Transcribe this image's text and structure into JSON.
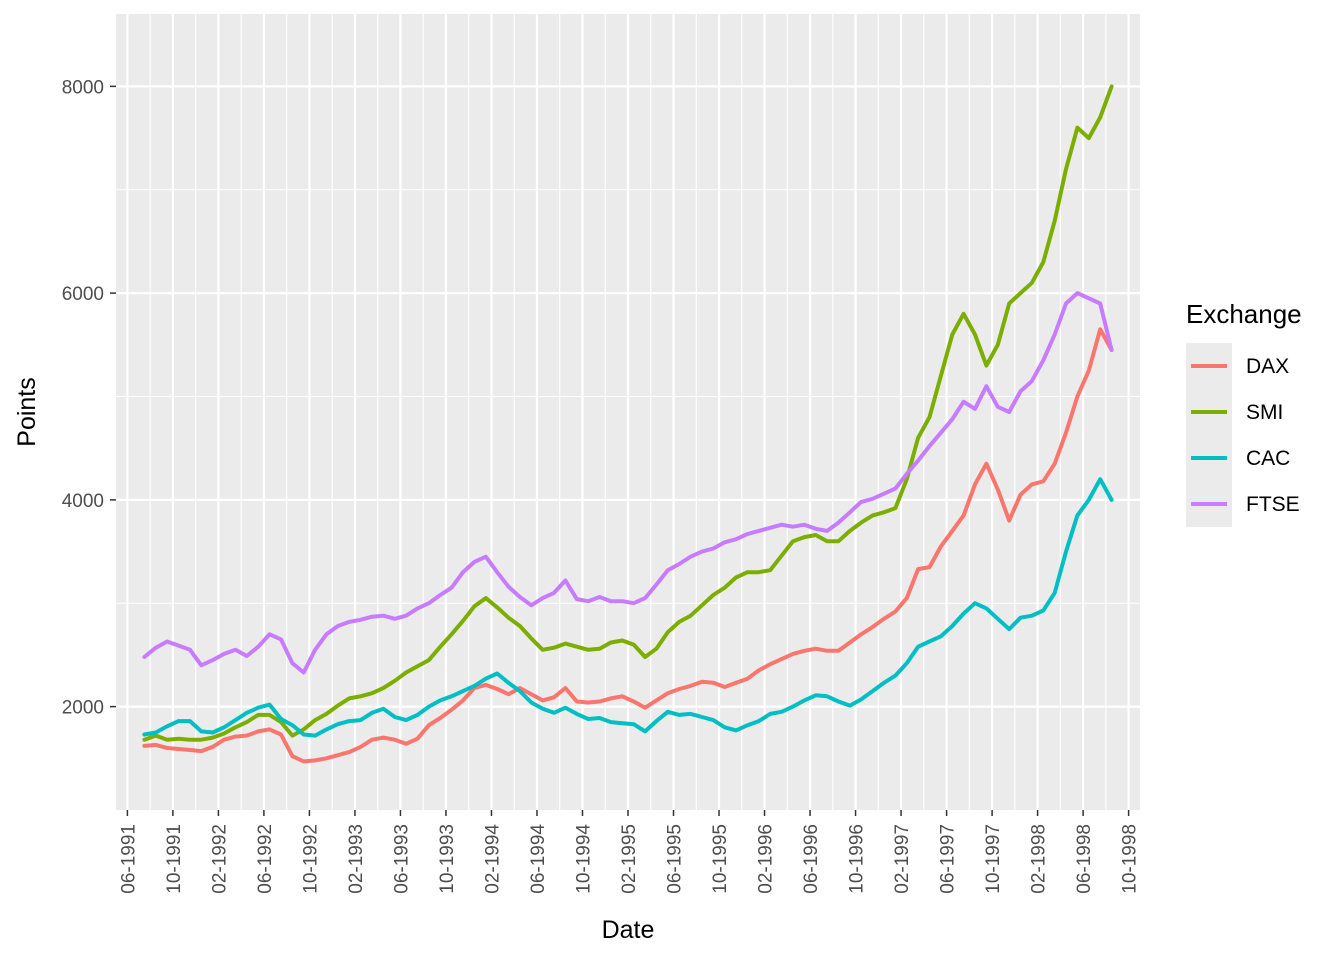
{
  "chart_data": {
    "type": "line",
    "title": "",
    "xlabel": "Date",
    "ylabel": "Points",
    "x_ticks": [
      "06-1991",
      "10-1991",
      "02-1992",
      "06-1992",
      "10-1992",
      "02-1993",
      "06-1993",
      "10-1993",
      "02-1994",
      "06-1994",
      "10-1994",
      "02-1995",
      "06-1995",
      "10-1995",
      "02-1996",
      "06-1996",
      "10-1996",
      "02-1997",
      "06-1997",
      "10-1997",
      "02-1998",
      "06-1998",
      "10-1998"
    ],
    "y_ticks": [
      2000,
      4000,
      6000,
      8000
    ],
    "xlim": [
      "1991-05-01",
      "1998-11-01"
    ],
    "ylim": [
      1000,
      8700
    ],
    "grid": true,
    "legend_title": "Exchange",
    "legend_position": "right",
    "x": [
      "1991-07",
      "1991-08",
      "1991-09",
      "1991-10",
      "1991-11",
      "1991-12",
      "1992-01",
      "1992-02",
      "1992-03",
      "1992-04",
      "1992-05",
      "1992-06",
      "1992-07",
      "1992-08",
      "1992-09",
      "1992-10",
      "1992-11",
      "1992-12",
      "1993-01",
      "1993-02",
      "1993-03",
      "1993-04",
      "1993-05",
      "1993-06",
      "1993-07",
      "1993-08",
      "1993-09",
      "1993-10",
      "1993-11",
      "1993-12",
      "1994-01",
      "1994-02",
      "1994-03",
      "1994-04",
      "1994-05",
      "1994-06",
      "1994-07",
      "1994-08",
      "1994-09",
      "1994-10",
      "1994-11",
      "1994-12",
      "1995-01",
      "1995-02",
      "1995-03",
      "1995-04",
      "1995-05",
      "1995-06",
      "1995-07",
      "1995-08",
      "1995-09",
      "1995-10",
      "1995-11",
      "1995-12",
      "1996-01",
      "1996-02",
      "1996-03",
      "1996-04",
      "1996-05",
      "1996-06",
      "1996-07",
      "1996-08",
      "1996-09",
      "1996-10",
      "1996-11",
      "1996-12",
      "1997-01",
      "1997-02",
      "1997-03",
      "1997-04",
      "1997-05",
      "1997-06",
      "1997-07",
      "1997-08",
      "1997-09",
      "1997-10",
      "1997-11",
      "1997-12",
      "1998-01",
      "1998-02",
      "1998-03",
      "1998-04",
      "1998-05",
      "1998-06",
      "1998-07",
      "1998-08"
    ],
    "series": [
      {
        "name": "DAX",
        "color": "#F8766D",
        "values": [
          1620,
          1630,
          1600,
          1590,
          1580,
          1570,
          1610,
          1680,
          1710,
          1720,
          1760,
          1780,
          1730,
          1520,
          1470,
          1480,
          1500,
          1530,
          1560,
          1610,
          1680,
          1700,
          1680,
          1640,
          1690,
          1820,
          1890,
          1970,
          2060,
          2180,
          2210,
          2170,
          2120,
          2180,
          2120,
          2060,
          2090,
          2180,
          2050,
          2040,
          2050,
          2080,
          2100,
          2050,
          1990,
          2060,
          2130,
          2170,
          2200,
          2240,
          2230,
          2190,
          2230,
          2270,
          2350,
          2410,
          2460,
          2510,
          2540,
          2560,
          2540,
          2540,
          2620,
          2700,
          2770,
          2850,
          2920,
          3050,
          3330,
          3350,
          3550,
          3700,
          3850,
          4150,
          4350,
          4100,
          3800,
          4050,
          4150,
          4180,
          4350,
          4650,
          5000,
          5250,
          5650,
          5450
        ]
      },
      {
        "name": "SMI",
        "color": "#7CAE00",
        "values": [
          1680,
          1720,
          1680,
          1690,
          1680,
          1680,
          1700,
          1740,
          1800,
          1850,
          1920,
          1920,
          1850,
          1720,
          1780,
          1870,
          1930,
          2010,
          2080,
          2100,
          2130,
          2180,
          2250,
          2330,
          2390,
          2450,
          2580,
          2700,
          2830,
          2970,
          3050,
          2960,
          2860,
          2780,
          2660,
          2550,
          2570,
          2610,
          2580,
          2550,
          2560,
          2620,
          2640,
          2600,
          2480,
          2560,
          2720,
          2820,
          2880,
          2980,
          3080,
          3150,
          3250,
          3300,
          3300,
          3320,
          3460,
          3600,
          3640,
          3660,
          3600,
          3600,
          3700,
          3780,
          3850,
          3880,
          3920,
          4200,
          4600,
          4800,
          5200,
          5600,
          5800,
          5600,
          5300,
          5500,
          5900,
          6000,
          6100,
          6300,
          6700,
          7200,
          7600,
          7500,
          7700,
          8000
        ]
      },
      {
        "name": "CAC",
        "color": "#00BFC4",
        "values": [
          1730,
          1750,
          1810,
          1860,
          1860,
          1760,
          1750,
          1800,
          1870,
          1940,
          1990,
          2020,
          1880,
          1820,
          1730,
          1720,
          1780,
          1830,
          1860,
          1870,
          1940,
          1980,
          1900,
          1870,
          1920,
          2000,
          2060,
          2100,
          2150,
          2200,
          2270,
          2320,
          2230,
          2150,
          2040,
          1980,
          1940,
          1990,
          1930,
          1880,
          1890,
          1850,
          1840,
          1830,
          1760,
          1860,
          1950,
          1920,
          1930,
          1900,
          1870,
          1800,
          1770,
          1820,
          1860,
          1930,
          1950,
          2000,
          2060,
          2110,
          2100,
          2050,
          2010,
          2070,
          2150,
          2230,
          2300,
          2420,
          2580,
          2630,
          2680,
          2780,
          2900,
          3000,
          2950,
          2850,
          2750,
          2860,
          2880,
          2930,
          3100,
          3500,
          3850,
          4000,
          4200,
          4000
        ]
      },
      {
        "name": "FTSE",
        "color": "#C77CFF",
        "values": [
          2480,
          2570,
          2630,
          2590,
          2550,
          2400,
          2450,
          2510,
          2550,
          2490,
          2580,
          2700,
          2650,
          2420,
          2330,
          2550,
          2700,
          2780,
          2820,
          2840,
          2870,
          2880,
          2850,
          2880,
          2950,
          3000,
          3080,
          3150,
          3300,
          3400,
          3450,
          3300,
          3160,
          3060,
          2980,
          3050,
          3100,
          3220,
          3040,
          3020,
          3060,
          3020,
          3020,
          3000,
          3050,
          3180,
          3320,
          3380,
          3450,
          3500,
          3530,
          3590,
          3620,
          3670,
          3700,
          3730,
          3760,
          3740,
          3760,
          3720,
          3700,
          3780,
          3880,
          3980,
          4010,
          4060,
          4110,
          4250,
          4380,
          4520,
          4650,
          4780,
          4950,
          4880,
          5100,
          4900,
          4850,
          5050,
          5150,
          5350,
          5600,
          5900,
          6000,
          5950,
          5900,
          5450
        ]
      }
    ]
  }
}
